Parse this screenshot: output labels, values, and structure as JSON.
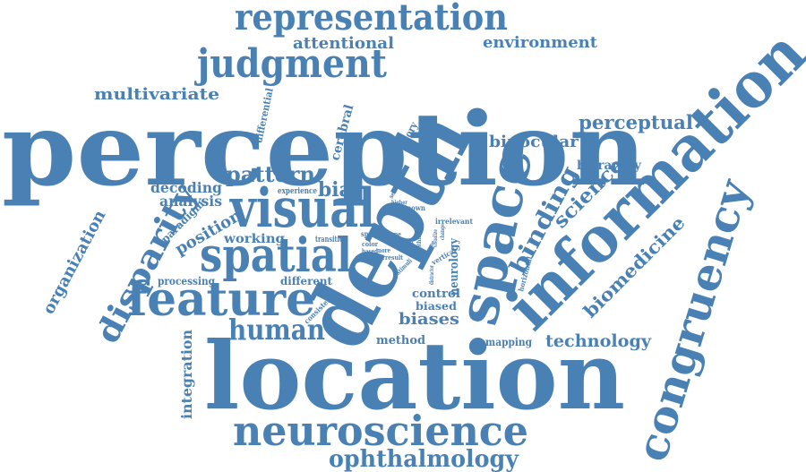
{
  "cloud": {
    "color": "#4a81b4",
    "words": {
      "perception": "perception",
      "location": "location",
      "depth": "depth",
      "information": "information",
      "space": "space",
      "congruency": "congruency",
      "representation": "representation",
      "judgment": "judgment",
      "visual": "visual",
      "spatial": "spatial",
      "feature": "feature",
      "neuroscience": "neuroscience",
      "ophthalmology": "ophthalmology",
      "human": "human",
      "disparity": "disparity",
      "binding": "binding",
      "biomedicine": "biomedicine",
      "science": "science",
      "technology": "technology",
      "pattern": "pattern",
      "bias": "bias",
      "biases": "biases",
      "attentional": "attentional",
      "environment": "environment",
      "multivariate": "multivariate",
      "perceptual": "perceptual",
      "binocular": "binocular",
      "hierarchy": "hierarchy",
      "decoding": "decoding",
      "analysis": "analysis",
      "position": "position",
      "paradigm": "paradigm",
      "working": "working",
      "processing": "processing",
      "different": "different",
      "organization": "organization",
      "integration": "integration",
      "method": "method",
      "mapping": "mapping",
      "control": "control",
      "biased": "biased",
      "neurology": "neurology",
      "memory": "memory",
      "cerebral": "cerebral",
      "differential": "differential",
      "experience": "experience",
      "transition": "transition",
      "irrelevant": "irrelevant",
      "unknown": "unknown",
      "selected": "selected",
      "higher": "higher",
      "special": "special",
      "color": "color",
      "based": "based",
      "vertical": "vertical",
      "horizontal": "horizontal",
      "consistent": "consistent",
      "type": "type",
      "more": "more",
      "perceived": "perceived",
      "result": "result",
      "stimuli": "stimuli",
      "distractor": "distractor",
      "title": "title",
      "visit": "visit",
      "within": "within",
      "role": "role",
      "change": "change",
      "visualize": "visualize",
      "frame": "frame"
    }
  }
}
